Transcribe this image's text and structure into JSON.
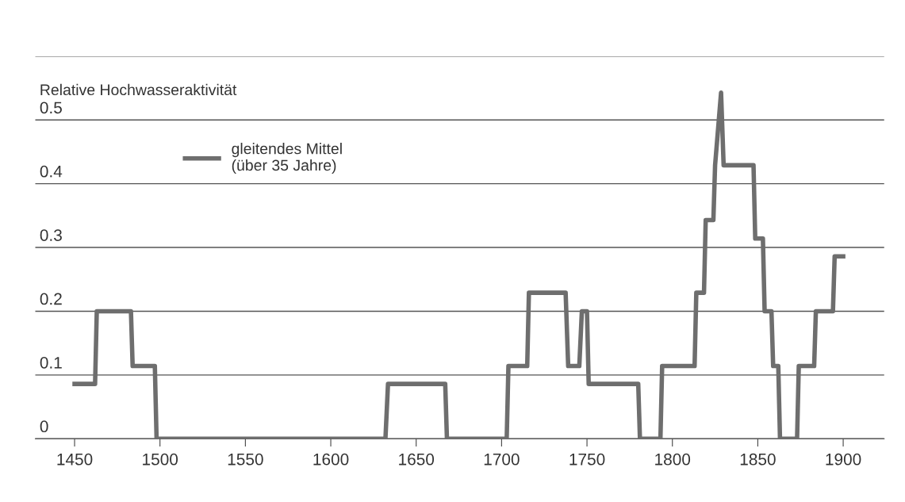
{
  "chart_data": {
    "type": "line",
    "ylabel": "Relative Hochwasseraktivität",
    "series": [
      {
        "name": "gleitendes Mittel\n(über 35 Jahre)",
        "color": "#6e6e6e",
        "x": [
          1450,
          1462,
          1463,
          1483,
          1484,
          1497,
          1498,
          1632,
          1633.5,
          1667,
          1668,
          1703,
          1704,
          1715,
          1716,
          1737.5,
          1739,
          1745.5,
          1747,
          1750,
          1751,
          1780,
          1781,
          1793,
          1794,
          1813,
          1814,
          1818.5,
          1819.5,
          1824,
          1825,
          1828.5,
          1830,
          1847.5,
          1848.5,
          1853,
          1854,
          1858,
          1859,
          1862,
          1863,
          1873,
          1874,
          1883,
          1884,
          1894,
          1895,
          1900
        ],
        "values": [
          0.086,
          0.086,
          0.2,
          0.2,
          0.114,
          0.114,
          0,
          0,
          0.086,
          0.086,
          0,
          0,
          0.114,
          0.114,
          0.229,
          0.229,
          0.114,
          0.114,
          0.2,
          0.2,
          0.086,
          0.086,
          0,
          0,
          0.114,
          0.114,
          0.229,
          0.229,
          0.343,
          0.343,
          0.429,
          0.543,
          0.429,
          0.429,
          0.314,
          0.314,
          0.2,
          0.2,
          0.114,
          0.114,
          0,
          0,
          0.114,
          0.114,
          0.2,
          0.2,
          0.286,
          0.286
        ]
      }
    ],
    "xlim": [
      1427,
      1924
    ],
    "xticks": [
      1450,
      1500,
      1550,
      1600,
      1650,
      1700,
      1750,
      1800,
      1850,
      1900
    ],
    "ylim": [
      0,
      0.6
    ],
    "yticks": [
      0,
      0.1,
      0.2,
      0.3,
      0.4,
      0.5,
      {
        "value": 0.6,
        "label": null
      }
    ],
    "grid": "y",
    "legend": "top left",
    "line_style": "solid",
    "marker": "none"
  }
}
